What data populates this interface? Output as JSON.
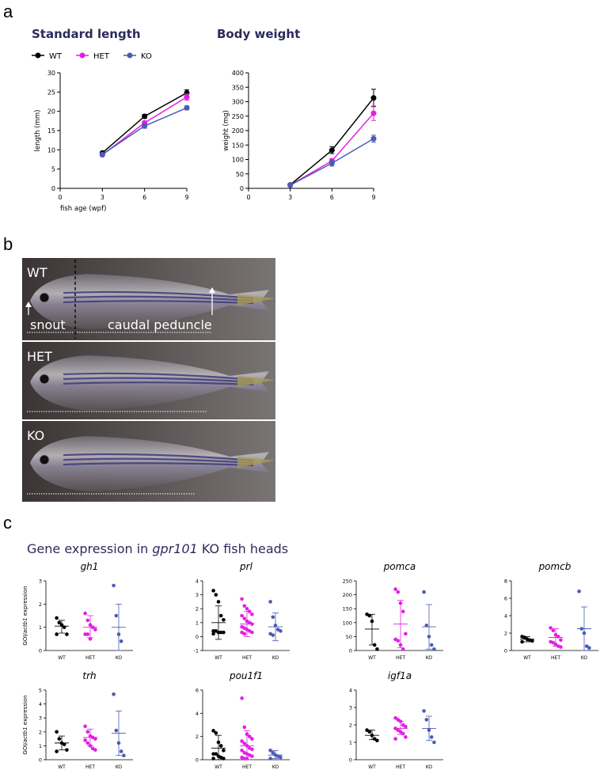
{
  "panels": {
    "a": "a",
    "b": "b",
    "c": "c"
  },
  "colors": {
    "WT": "#000000",
    "HET": "#e31fe3",
    "KO": "#4a5cb5",
    "heading": "#2b2a5c",
    "photo_bg": "#4a4444"
  },
  "panel_a": {
    "legend": [
      "WT",
      "HET",
      "KO"
    ],
    "charts": [
      {
        "id": "sl",
        "title": "Standard length",
        "ylabel": "length (mm)",
        "xlabel": "fish age (wpf)",
        "yticks": [
          0,
          5,
          10,
          15,
          20,
          25,
          30
        ],
        "ylim": [
          0,
          30
        ],
        "xticks": [
          0,
          3,
          6,
          9
        ],
        "xlim": [
          0,
          9
        ],
        "series": [
          {
            "name": "WT",
            "x": [
              3,
              6,
              9
            ],
            "y": [
              9.2,
              18.7,
              24.8
            ],
            "err": [
              0.3,
              0.5,
              0.8
            ]
          },
          {
            "name": "HET",
            "x": [
              3,
              6,
              9
            ],
            "y": [
              8.7,
              17.0,
              23.7
            ],
            "err": [
              0.3,
              0.5,
              0.8
            ]
          },
          {
            "name": "KO",
            "x": [
              3,
              6,
              9
            ],
            "y": [
              8.8,
              16.2,
              20.9
            ],
            "err": [
              0.3,
              0.6,
              0.5
            ]
          }
        ]
      },
      {
        "id": "bw",
        "title": "Body weight",
        "ylabel": "weight (mg)",
        "xlabel": "",
        "yticks": [
          0,
          50,
          100,
          150,
          200,
          250,
          300,
          350,
          400
        ],
        "ylim": [
          0,
          400
        ],
        "xticks": [
          0,
          3,
          6,
          9
        ],
        "xlim": [
          0,
          9
        ],
        "series": [
          {
            "name": "WT",
            "x": [
              3,
              6,
              9
            ],
            "y": [
              12,
              132,
              313
            ],
            "err": [
              3,
              12,
              30
            ]
          },
          {
            "name": "HET",
            "x": [
              3,
              6,
              9
            ],
            "y": [
              11,
              95,
              260
            ],
            "err": [
              3,
              8,
              25
            ]
          },
          {
            "name": "KO",
            "x": [
              3,
              6,
              9
            ],
            "y": [
              11,
              87,
              172
            ],
            "err": [
              3,
              10,
              12
            ]
          }
        ]
      }
    ]
  },
  "panel_b": {
    "photos": [
      {
        "label": "WT",
        "left": "snout",
        "right": "caudal peduncle"
      },
      {
        "label": "HET"
      },
      {
        "label": "KO"
      }
    ]
  },
  "panel_c": {
    "title_prefix": "Gene expression in ",
    "title_gene": "gpr101",
    "title_suffix": " KO fish heads",
    "ylabel_gene": "GOI/",
    "ylabel_ref": "actb1",
    "ylabel_tail": " expression",
    "groups": [
      "WT",
      "HET",
      "KO"
    ],
    "genes": [
      {
        "name": "gh1",
        "yticks": [
          0,
          1,
          2,
          3
        ],
        "ymax": 3,
        "points": [
          [
            1.4,
            1.2,
            1.1,
            1.0,
            0.7,
            0.7
          ],
          [
            1.6,
            1.3,
            1.1,
            1.0,
            0.9,
            0.7,
            0.7,
            0.5
          ],
          [
            2.8,
            1.5,
            0.7,
            0.4
          ]
        ],
        "summary": [
          [
            1.05,
            0.75,
            1.3
          ],
          [
            1.0,
            0.55,
            1.5
          ],
          [
            1.0,
            0.0,
            2.0
          ]
        ]
      },
      {
        "name": "prl",
        "yticks": [
          -1,
          0,
          1,
          2,
          3,
          4
        ],
        "ymax": 4,
        "ymin": -1,
        "points": [
          [
            3.3,
            3.0,
            2.5,
            1.5,
            1.2,
            0.4,
            0.4,
            0.3,
            0.3,
            0.3,
            0.2
          ],
          [
            2.7,
            2.2,
            2.0,
            1.8,
            1.6,
            1.5,
            1.3,
            1.1,
            1.0,
            0.9,
            0.7,
            0.6,
            0.5,
            0.4,
            0.3,
            0.3,
            0.2
          ],
          [
            2.5,
            1.4,
            0.8,
            0.5,
            0.4,
            0.2,
            0.1
          ]
        ],
        "summary": [
          [
            1.0,
            -0.2,
            2.2
          ],
          [
            0.9,
            0.0,
            1.8
          ],
          [
            0.7,
            -0.3,
            1.7
          ]
        ]
      },
      {
        "name": "pomca",
        "yticks": [
          0,
          50,
          100,
          150,
          200,
          250
        ],
        "ymax": 250,
        "points": [
          [
            130,
            125,
            105,
            20,
            5
          ],
          [
            220,
            210,
            170,
            140,
            60,
            40,
            35,
            20,
            5
          ],
          [
            210,
            90,
            50,
            20,
            5
          ]
        ],
        "summary": [
          [
            77,
            20,
            130
          ],
          [
            95,
            10,
            180
          ],
          [
            85,
            5,
            165
          ]
        ]
      },
      {
        "name": "pomcb",
        "yticks": [
          0,
          2,
          4,
          6,
          8
        ],
        "ymax": 8,
        "points": [
          [
            1.6,
            1.5,
            1.3,
            1.2,
            1.1,
            1.0
          ],
          [
            2.6,
            2.3,
            1.8,
            1.6,
            1.2,
            1.0,
            0.9,
            0.7,
            0.5,
            0.4
          ],
          [
            6.8,
            2.5,
            2.0,
            0.5,
            0.3
          ]
        ],
        "summary": [
          [
            1.3,
            1.0,
            1.6
          ],
          [
            1.5,
            0.5,
            2.5
          ],
          [
            2.5,
            0.0,
            5.0
          ]
        ]
      },
      {
        "name": "trh",
        "yticks": [
          0,
          1,
          2,
          3,
          4,
          5
        ],
        "ymax": 5,
        "points": [
          [
            2.0,
            1.5,
            1.2,
            1.1,
            0.7,
            0.6
          ],
          [
            2.4,
            2.0,
            1.7,
            1.6,
            1.5,
            1.4,
            1.2,
            1.0,
            0.8,
            0.7
          ],
          [
            4.7,
            2.1,
            1.2,
            0.6,
            0.3
          ]
        ],
        "summary": [
          [
            1.2,
            0.7,
            1.7
          ],
          [
            1.6,
            1.0,
            2.2
          ],
          [
            1.9,
            0.3,
            3.5
          ]
        ]
      },
      {
        "name": "pou1f1",
        "yticks": [
          0,
          2,
          4,
          6
        ],
        "ymax": 6,
        "points": [
          [
            2.5,
            2.3,
            1.5,
            1.2,
            0.8,
            0.5,
            0.5,
            0.3,
            0.2,
            0.1,
            0.1
          ],
          [
            5.3,
            2.8,
            2.2,
            2.0,
            1.8,
            1.6,
            1.4,
            1.2,
            1.0,
            0.9,
            0.8,
            0.6,
            0.5,
            0.4,
            0.3,
            0.2,
            0.1,
            0.1
          ],
          [
            0.8,
            0.6,
            0.4,
            0.3,
            0.2,
            0.1
          ]
        ],
        "summary": [
          [
            1.0,
            0.0,
            2.1
          ],
          [
            1.2,
            0.0,
            2.5
          ],
          [
            0.4,
            0.1,
            0.8
          ]
        ]
      },
      {
        "name": "igf1a",
        "yticks": [
          0,
          1,
          2,
          3,
          4
        ],
        "ymax": 4,
        "points": [
          [
            1.7,
            1.6,
            1.4,
            1.2,
            1.1
          ],
          [
            2.4,
            2.3,
            2.2,
            2.0,
            1.9,
            1.8,
            1.7,
            1.6,
            1.5,
            1.3,
            1.2
          ],
          [
            2.8,
            2.3,
            1.7,
            1.3,
            1.0
          ]
        ],
        "summary": [
          [
            1.4,
            1.15,
            1.7
          ],
          [
            1.8,
            1.45,
            2.2
          ],
          [
            1.8,
            1.1,
            2.5
          ]
        ]
      }
    ]
  }
}
